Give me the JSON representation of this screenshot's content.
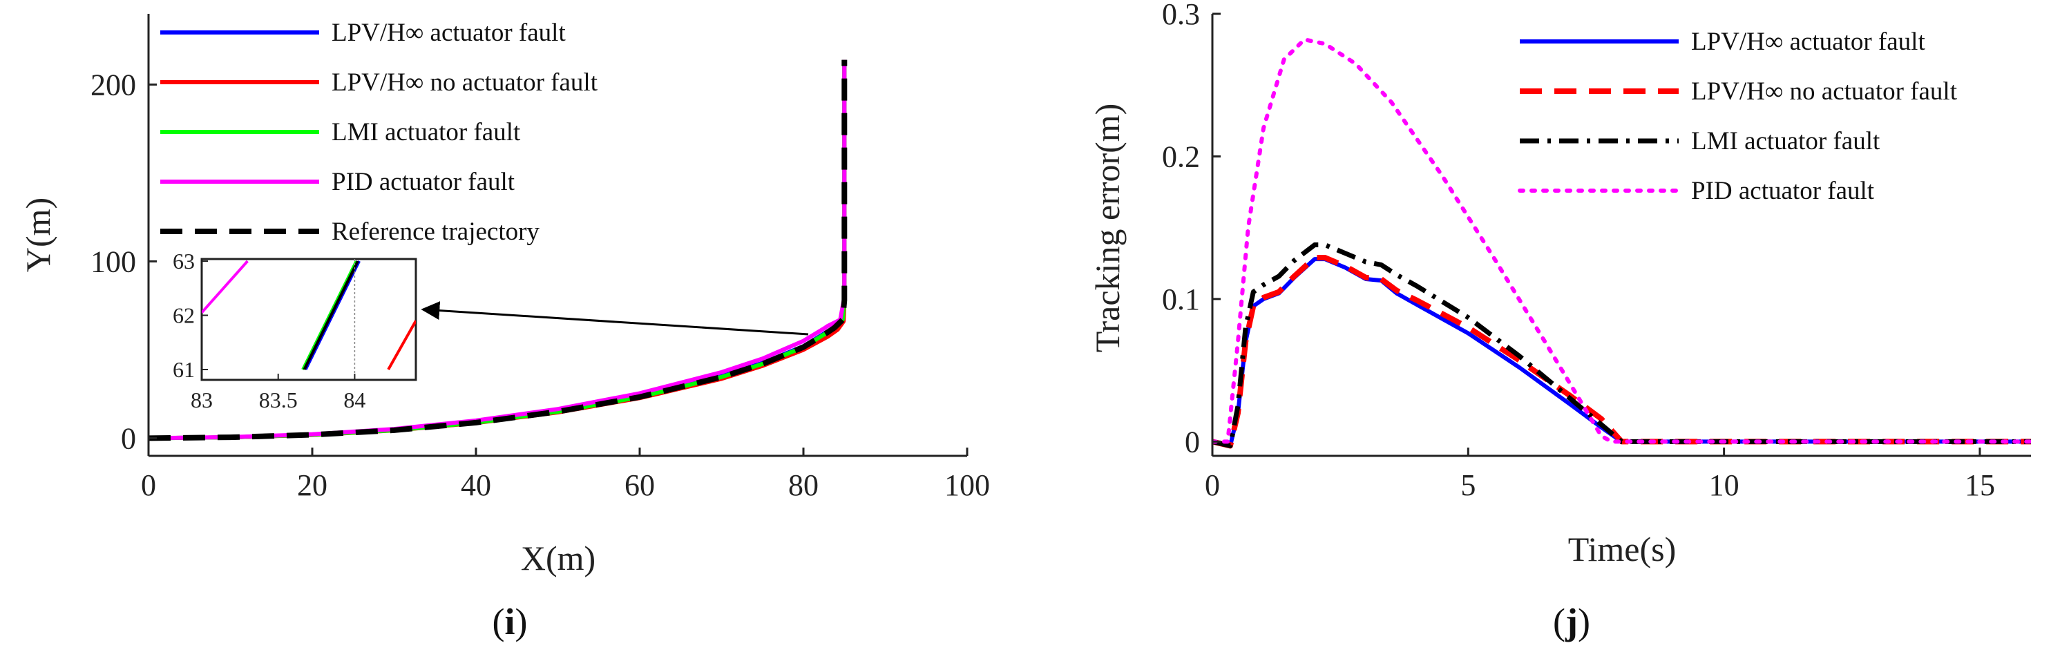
{
  "chart_data": [
    {
      "type": "line",
      "panel_label": "(i)",
      "xlabel": "X(m)",
      "ylabel": "Y(m)",
      "xlim": [
        0,
        100
      ],
      "ylim": [
        -10,
        240
      ],
      "xticks": [
        "0",
        "20",
        "40",
        "60",
        "80",
        "100"
      ],
      "yticks": [
        "0",
        "100",
        "200"
      ],
      "series": [
        {
          "name": "LPV/H∞ actuator fault",
          "color": "#0000ff",
          "dash": "solid",
          "points": [
            [
              0,
              0
            ],
            [
              10,
              0.5
            ],
            [
              20,
              1.9
            ],
            [
              30,
              4.6
            ],
            [
              40,
              9.0
            ],
            [
              50,
              15.2
            ],
            [
              60,
              23.6
            ],
            [
              70,
              35.0
            ],
            [
              75,
              42.5
            ],
            [
              80,
              52.0
            ],
            [
              83,
              60.5
            ],
            [
              84,
              63.5
            ],
            [
              84.8,
              68
            ],
            [
              85,
              78
            ],
            [
              85,
              140
            ],
            [
              85,
              214
            ]
          ]
        },
        {
          "name": "LPV/H∞ no actuator fault",
          "color": "#ff0000",
          "dash": "solid",
          "points": [
            [
              0,
              0
            ],
            [
              10,
              0.5
            ],
            [
              20,
              1.8
            ],
            [
              30,
              4.4
            ],
            [
              40,
              8.6
            ],
            [
              50,
              14.6
            ],
            [
              60,
              22.7
            ],
            [
              70,
              33.6
            ],
            [
              75,
              40.9
            ],
            [
              80,
              50.0
            ],
            [
              83,
              57.5
            ],
            [
              84.2,
              61.5
            ],
            [
              84.9,
              66
            ],
            [
              85,
              76
            ],
            [
              85,
              140
            ],
            [
              85,
              214
            ]
          ]
        },
        {
          "name": "LMI actuator fault",
          "color": "#00ff00",
          "dash": "solid",
          "points": [
            [
              0,
              0
            ],
            [
              10,
              0.5
            ],
            [
              20,
              1.9
            ],
            [
              30,
              4.5
            ],
            [
              40,
              8.8
            ],
            [
              50,
              15.0
            ],
            [
              60,
              23.3
            ],
            [
              70,
              34.6
            ],
            [
              75,
              42.0
            ],
            [
              80,
              51.5
            ],
            [
              83,
              60.0
            ],
            [
              83.8,
              62.5
            ],
            [
              84.8,
              67
            ],
            [
              85,
              78
            ],
            [
              85,
              140
            ],
            [
              85,
              214
            ]
          ]
        },
        {
          "name": "PID actuator fault",
          "color": "#ff00ff",
          "dash": "solid",
          "points": [
            [
              0,
              0
            ],
            [
              10,
              0.6
            ],
            [
              20,
              2.2
            ],
            [
              30,
              5.2
            ],
            [
              40,
              10.0
            ],
            [
              50,
              16.5
            ],
            [
              60,
              25.4
            ],
            [
              70,
              37.3
            ],
            [
              75,
              45.0
            ],
            [
              80,
              55.0
            ],
            [
              82.5,
              62
            ],
            [
              83,
              63.5
            ],
            [
              84.5,
              67
            ],
            [
              85,
              80
            ],
            [
              85,
              140
            ],
            [
              85,
              214
            ]
          ]
        },
        {
          "name": "Reference trajectory",
          "color": "#000000",
          "dash": "dashed",
          "points": [
            [
              0,
              0
            ],
            [
              10,
              0.5
            ],
            [
              20,
              1.9
            ],
            [
              30,
              4.5
            ],
            [
              40,
              8.8
            ],
            [
              50,
              15.0
            ],
            [
              60,
              23.3
            ],
            [
              70,
              34.6
            ],
            [
              75,
              42.0
            ],
            [
              80,
              51.5
            ],
            [
              83,
              60.0
            ],
            [
              83.8,
              62.5
            ],
            [
              84.8,
              67
            ],
            [
              85,
              78
            ],
            [
              85,
              140
            ],
            [
              85,
              214
            ]
          ]
        }
      ],
      "inset": {
        "xlim": [
          83,
          84.4
        ],
        "ylim": [
          61,
          63
        ],
        "xticks": [
          "83",
          "83.5",
          "84"
        ],
        "yticks": [
          "61",
          "62",
          "63"
        ],
        "lines": [
          {
            "color": "#ff00ff",
            "points": [
              [
                83,
                62.05
              ],
              [
                83.3,
                63
              ]
            ]
          },
          {
            "color": "#ff0000",
            "points": [
              [
                84.22,
                61
              ],
              [
                84.4,
                61.9
              ]
            ]
          },
          {
            "color": "#00ff00",
            "points": [
              [
                83.66,
                61
              ],
              [
                84.01,
                63
              ]
            ]
          },
          {
            "color": "#0000ff",
            "points": [
              [
                83.68,
                61
              ],
              [
                84.03,
                63
              ]
            ]
          },
          {
            "color": "#000000",
            "points": [
              [
                83.67,
                61
              ],
              [
                84.02,
                63
              ]
            ]
          }
        ],
        "marker_x": 84.0
      }
    },
    {
      "type": "line",
      "panel_label": "(j)",
      "xlabel": "Time(s)",
      "ylabel": "Tracking error(m)",
      "xlim": [
        0,
        16
      ],
      "ylim": [
        -0.01,
        0.3
      ],
      "xticks": [
        "0",
        "5",
        "10",
        "15"
      ],
      "yticks": [
        "0",
        "0.1",
        "0.2",
        "0.3"
      ],
      "series": [
        {
          "name": "LPV/H∞ actuator fault",
          "color": "#0000ff",
          "dash": "solid",
          "points": [
            [
              0,
              0
            ],
            [
              0.35,
              -0.003
            ],
            [
              0.5,
              0.02
            ],
            [
              0.65,
              0.07
            ],
            [
              0.8,
              0.095
            ],
            [
              1.0,
              0.1
            ],
            [
              1.3,
              0.104
            ],
            [
              1.6,
              0.115
            ],
            [
              2.0,
              0.128
            ],
            [
              2.2,
              0.128
            ],
            [
              2.6,
              0.122
            ],
            [
              3.0,
              0.114
            ],
            [
              3.3,
              0.113
            ],
            [
              3.6,
              0.104
            ],
            [
              4.0,
              0.096
            ],
            [
              5.0,
              0.076
            ],
            [
              6.0,
              0.052
            ],
            [
              7.0,
              0.026
            ],
            [
              7.6,
              0.01
            ],
            [
              8.0,
              0.0
            ],
            [
              16,
              0.0
            ]
          ]
        },
        {
          "name": "LPV/H∞ no actuator fault",
          "color": "#ff0000",
          "dash": "dashed",
          "points": [
            [
              0,
              0
            ],
            [
              0.35,
              -0.003
            ],
            [
              0.5,
              0.02
            ],
            [
              0.65,
              0.07
            ],
            [
              0.8,
              0.095
            ],
            [
              1.0,
              0.101
            ],
            [
              1.3,
              0.105
            ],
            [
              1.6,
              0.116
            ],
            [
              2.0,
              0.129
            ],
            [
              2.2,
              0.129
            ],
            [
              2.6,
              0.123
            ],
            [
              3.0,
              0.115
            ],
            [
              3.3,
              0.114
            ],
            [
              3.6,
              0.106
            ],
            [
              4.0,
              0.099
            ],
            [
              5.0,
              0.08
            ],
            [
              6.0,
              0.057
            ],
            [
              7.0,
              0.032
            ],
            [
              7.6,
              0.016
            ],
            [
              8.0,
              0.0
            ],
            [
              16,
              0.0
            ]
          ]
        },
        {
          "name": "LMI actuator fault",
          "color": "#000000",
          "dash": "dashdot",
          "points": [
            [
              0,
              0
            ],
            [
              0.35,
              -0.003
            ],
            [
              0.5,
              0.025
            ],
            [
              0.65,
              0.08
            ],
            [
              0.8,
              0.105
            ],
            [
              1.0,
              0.11
            ],
            [
              1.3,
              0.116
            ],
            [
              1.6,
              0.127
            ],
            [
              2.0,
              0.138
            ],
            [
              2.2,
              0.138
            ],
            [
              2.6,
              0.132
            ],
            [
              3.0,
              0.126
            ],
            [
              3.3,
              0.124
            ],
            [
              3.6,
              0.117
            ],
            [
              4.0,
              0.109
            ],
            [
              5.0,
              0.087
            ],
            [
              6.0,
              0.06
            ],
            [
              7.0,
              0.03
            ],
            [
              7.6,
              0.012
            ],
            [
              8.0,
              0.0
            ],
            [
              16,
              0.0
            ]
          ]
        },
        {
          "name": "PID actuator fault",
          "color": "#ff00ff",
          "dash": "dotted",
          "points": [
            [
              0,
              0
            ],
            [
              0.3,
              0.0
            ],
            [
              0.5,
              0.07
            ],
            [
              0.7,
              0.15
            ],
            [
              1.0,
              0.22
            ],
            [
              1.4,
              0.268
            ],
            [
              1.8,
              0.282
            ],
            [
              2.2,
              0.279
            ],
            [
              2.8,
              0.265
            ],
            [
              3.5,
              0.238
            ],
            [
              4.5,
              0.186
            ],
            [
              5.5,
              0.129
            ],
            [
              6.5,
              0.07
            ],
            [
              7.2,
              0.028
            ],
            [
              7.6,
              0.004
            ],
            [
              7.8,
              0.0
            ],
            [
              16,
              0.0
            ]
          ]
        }
      ]
    }
  ]
}
